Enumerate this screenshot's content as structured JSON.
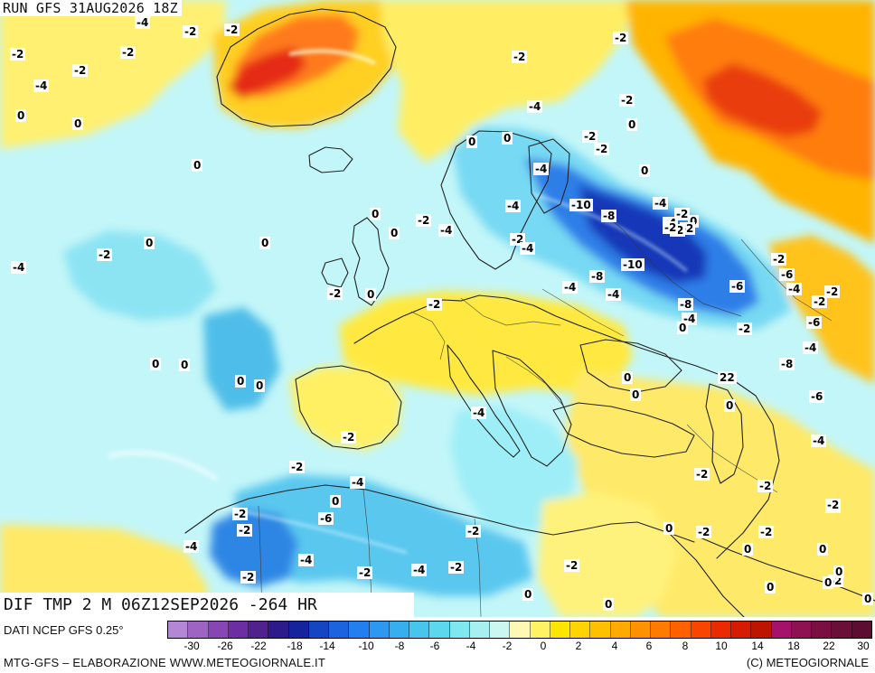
{
  "header": {
    "run_title": "RUN GFS 31AUG2026 18Z"
  },
  "map": {
    "field_title": "DIF TMP 2 M 06Z12SEP2026 -264 HR",
    "value_labels": [
      "-2",
      "-4",
      "-2",
      "-2",
      "-2",
      "0",
      "-2",
      "0",
      "0",
      "-4",
      "-2",
      "-2",
      "-4",
      "-2",
      "0",
      "-2",
      "-2",
      "0",
      "-4",
      "0",
      "0",
      "-2",
      "-4",
      "-4",
      "-2",
      "0",
      "-4",
      "-2",
      "0",
      "-4",
      "-2",
      "0",
      "0",
      "0",
      "-2",
      "-4",
      "-10",
      "-8",
      "-4",
      "-2",
      "0",
      "-4",
      "-2",
      "-4",
      "-2",
      "-2",
      "-10",
      "-8",
      "-4",
      "-8",
      "-6",
      "-2",
      "-6",
      "-4",
      "-2",
      "-2",
      "-4",
      "-8",
      "-6",
      "-4",
      "-2",
      "0",
      "-6",
      "-4",
      "-2",
      "-2",
      "-2",
      "-2",
      "-2",
      "0",
      "0",
      "0",
      "-2",
      "0",
      "0",
      "0",
      "0",
      "-2",
      "-4",
      "-2",
      "-4",
      "-2",
      "-4",
      "-2",
      "0",
      "-6",
      "-2",
      "-2",
      "-2",
      "-4",
      "-2",
      "-4",
      "-2",
      "0",
      "0",
      "0",
      "22",
      "0",
      "-2",
      "0",
      "0",
      "0",
      "0",
      "0"
    ]
  },
  "legend": {
    "data_source": "DATI NCEP GFS 0.25°",
    "tick_labels": [
      "-30",
      "-26",
      "-22",
      "-18",
      "-14",
      "-10",
      "-8",
      "-6",
      "-4",
      "-2",
      "0",
      "2",
      "4",
      "6",
      "8",
      "10",
      "14",
      "18",
      "22",
      "30"
    ],
    "colors": [
      "#b487d6",
      "#9d64c4",
      "#8647b5",
      "#6e2ea3",
      "#4f228f",
      "#2d1b8b",
      "#16239d",
      "#1446c4",
      "#1b63df",
      "#227ff0",
      "#2d98f2",
      "#37afef",
      "#46c5ed",
      "#5bd8ee",
      "#7ee7f0",
      "#a6f0f2",
      "#cbf7f2",
      "#fff8b5",
      "#fff263",
      "#ffe600",
      "#ffd400",
      "#ffc000",
      "#ffaa00",
      "#ff9200",
      "#ff7b00",
      "#ff6000",
      "#f84600",
      "#ea2b00",
      "#d51c00",
      "#bd1500",
      "#a5126b",
      "#8d1153",
      "#7a0f43",
      "#6a0f38",
      "#5c0d31"
    ]
  },
  "footer": {
    "left": "MTG-GFS – ELABORAZIONE WWW.METEOGIORNALE.IT",
    "right": "(C) METEOGIORNALE"
  }
}
